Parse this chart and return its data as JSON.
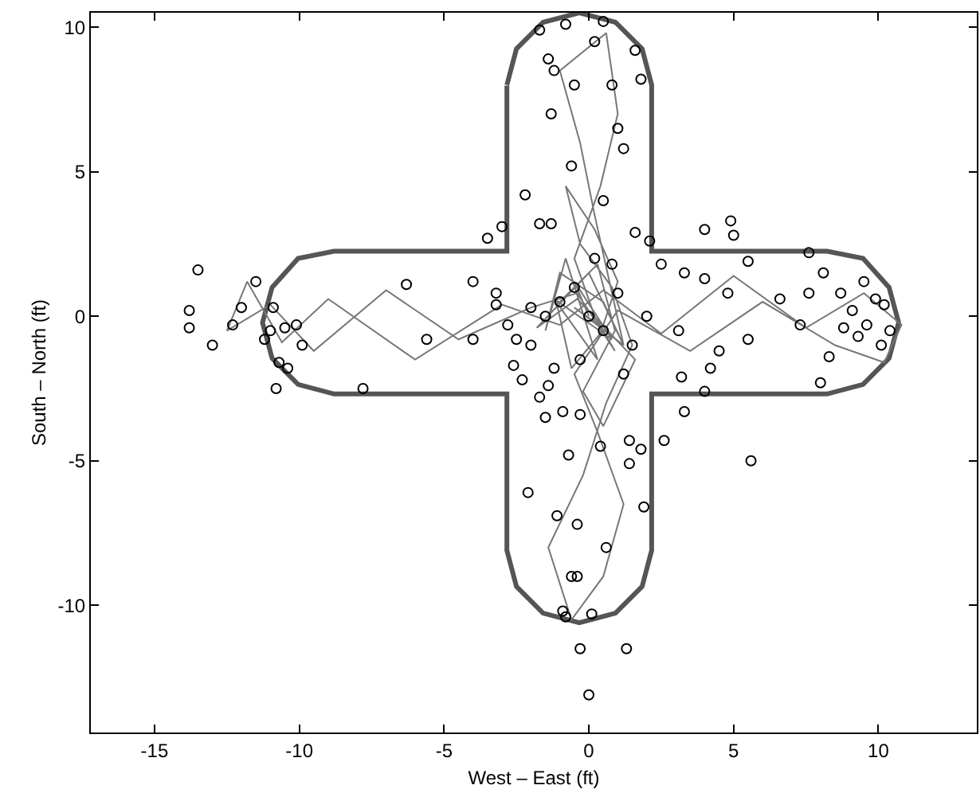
{
  "chart_data": {
    "type": "scatter",
    "xlabel": "West – East (ft)",
    "ylabel": "South – North (ft)",
    "xlim": [
      -17.2,
      13.4
    ],
    "xticks": [
      -15,
      -10,
      -5,
      0,
      5,
      10
    ],
    "ylim": [
      -14.4,
      10.5
    ],
    "yticks": [
      -10,
      -5,
      0,
      5,
      10
    ],
    "grid": false,
    "marker": "circle",
    "series": [
      {
        "type": "line",
        "marker": "none",
        "color": "#555555",
        "x": [
          -2.83,
          -2.5,
          -1.58,
          -0.33,
          0.92,
          1.84,
          2.17,
          2.17,
          8.23,
          9.47,
          10.37,
          10.7,
          10.37,
          9.47,
          8.23,
          2.17,
          2.17,
          1.84,
          0.92,
          -0.33,
          -1.58,
          -2.5,
          -2.83,
          -2.83,
          -8.8,
          -10.04,
          -10.94,
          -11.27,
          -10.94,
          -10.04,
          -8.8,
          -2.83,
          -2.83,
          -2.83
        ],
        "values": [
          8.0,
          9.25,
          10.17,
          10.5,
          10.17,
          9.25,
          8.0,
          2.25,
          2.25,
          2.0,
          1.0,
          -0.22,
          -1.45,
          -2.36,
          -2.69,
          -2.69,
          -8.1,
          -9.35,
          -10.27,
          -10.6,
          -10.27,
          -9.35,
          -8.1,
          -2.69,
          -2.69,
          -2.36,
          -1.45,
          -0.22,
          1.0,
          2.0,
          2.25,
          2.25,
          5.0,
          7.98
        ]
      },
      {
        "type": "line",
        "marker": "none",
        "color": "#777777",
        "x": [
          0,
          -0.5,
          0.8,
          -1.2,
          0.3,
          -0.8,
          -1.5,
          -1.0,
          0.5,
          1.2,
          0.2,
          -0.3,
          -1.0,
          0.6,
          1.0,
          0.4,
          -0.5,
          0.2,
          0.9,
          -0.4,
          -2.0,
          -4.5,
          -7.0,
          -9.5,
          -11.0,
          -12.5,
          -11.8,
          -10.6,
          -9.0,
          -6.0,
          -3.0,
          -1.0,
          0.5,
          2.5,
          5.0,
          7.5,
          9.5,
          10.8,
          10.2,
          8.5,
          6.0,
          3.5,
          1.0,
          -0.5,
          0.3,
          1.2,
          0.5,
          -0.6,
          -1.4,
          -0.2,
          0.6,
          1.5,
          0.8,
          -0.3,
          -0.8,
          0.2,
          1.0,
          0.4,
          -0.6,
          -1.1,
          0.3,
          0.9,
          -0.2,
          0.5,
          1.6,
          -0.4,
          -1.8,
          0.0,
          1.2,
          -0.5,
          0.2
        ],
        "values": [
          0,
          1.2,
          -0.8,
          0.6,
          -1.5,
          2.0,
          -0.5,
          1.5,
          0.5,
          -1.0,
          3.5,
          6.0,
          8.5,
          9.8,
          7.0,
          4.5,
          2.0,
          0,
          -1.2,
          0.8,
          0.3,
          -0.8,
          0.9,
          -1.2,
          0.4,
          -0.5,
          1.2,
          -0.9,
          0.6,
          -1.5,
          0.4,
          -0.3,
          0.9,
          -0.6,
          1.4,
          -0.4,
          0.8,
          -0.3,
          -1.6,
          -1.0,
          0.5,
          -1.2,
          0.2,
          -2.0,
          -4.0,
          -6.5,
          -9.0,
          -10.5,
          -8.0,
          -5.5,
          -3.0,
          -1.0,
          1.0,
          2.5,
          4.5,
          3.0,
          1.2,
          -0.6,
          -1.8,
          0.4,
          1.8,
          -0.5,
          -2.6,
          -3.8,
          -1.5,
          0.6,
          -0.4,
          1.5,
          -1.0,
          0.3,
          -0.2
        ]
      },
      {
        "color": "#000000",
        "x": [
          -13.8,
          -13.8,
          -13.5,
          -13,
          -12.3,
          -12,
          -11.5,
          -11.2,
          -11,
          -10.9,
          -10.7,
          -10.8,
          -10.5,
          -10.4,
          -10.1,
          -9.9,
          -7.8,
          -6.3,
          -5.6,
          -4,
          -4,
          -3.5,
          -3,
          -3.2,
          -3.2,
          -2.8,
          -2.6,
          -2.3,
          -2,
          -1.7,
          -1.5,
          -1.7,
          -1.4,
          -1.2,
          -0.8,
          0.2,
          0.5,
          -0.5,
          0.8,
          1,
          1.6,
          1.8,
          -1.3,
          -0.6,
          1.2,
          -2.2,
          -1.7,
          -1.3,
          0.5,
          1.6,
          2.1,
          2.5,
          3.1,
          3.3,
          4,
          4,
          4.5,
          4.8,
          4.9,
          5,
          5.5,
          5.5,
          5.6,
          6.6,
          7.3,
          7.6,
          7.6,
          8.1,
          8.3,
          8.7,
          8.8,
          9.1,
          9.3,
          9.5,
          9.6,
          9.9,
          10.2,
          10.4,
          10.1,
          8.0,
          4.2,
          4,
          3.3,
          2.6,
          3.2,
          1.8,
          1.4,
          0.4,
          -0.3,
          -0.9,
          -1.4,
          -0.7,
          1.4,
          -2.1,
          -1.1,
          -0.4,
          0.6,
          -0.6,
          -0.4,
          -0.9,
          -0.8,
          0.1,
          -0.3,
          0,
          1.3,
          1.9,
          -1,
          -0.5,
          0,
          0.5,
          1,
          -1.5,
          -2,
          1.5,
          0.2,
          -0.3,
          1.2,
          -1.2,
          0.8,
          2,
          -2.5
        ],
        "values": [
          0.2,
          -0.4,
          1.6,
          -1,
          -0.3,
          0.3,
          1.2,
          -0.8,
          -0.5,
          0.3,
          -1.6,
          -2.5,
          -0.4,
          -1.8,
          -0.3,
          -1,
          -2.5,
          1.1,
          -0.8,
          -0.8,
          1.2,
          2.7,
          3.1,
          0.8,
          0.4,
          -0.3,
          -1.7,
          -2.2,
          -1,
          -2.8,
          -3.5,
          9.9,
          8.9,
          8.5,
          10.1,
          9.5,
          10.2,
          8.0,
          8.0,
          6.5,
          9.2,
          8.2,
          7,
          5.2,
          5.8,
          4.2,
          3.2,
          3.2,
          4.0,
          2.9,
          2.6,
          1.8,
          -0.5,
          1.5,
          3.0,
          1.3,
          -1.2,
          0.8,
          3.3,
          2.8,
          1.9,
          -0.8,
          -5,
          0.6,
          -0.3,
          0.8,
          2.2,
          1.5,
          -1.4,
          0.8,
          -0.4,
          0.2,
          -0.7,
          1.2,
          -0.3,
          0.6,
          0.4,
          -0.5,
          -1.0,
          -2.3,
          -1.8,
          -2.6,
          -3.3,
          -4.3,
          -2.1,
          -4.6,
          -4.3,
          -4.5,
          -3.4,
          -3.3,
          -2.4,
          -4.8,
          -5.1,
          -6.1,
          -6.9,
          -7.2,
          -8,
          -9.0,
          -9.0,
          -10.2,
          -10.4,
          -10.3,
          -11.5,
          -13.1,
          -11.5,
          -6.6,
          0.5,
          1,
          0,
          -0.5,
          0.8,
          0,
          0.3,
          -1,
          2,
          -1.5,
          -2,
          -1.8,
          1.8,
          0,
          -0.8
        ]
      }
    ]
  }
}
